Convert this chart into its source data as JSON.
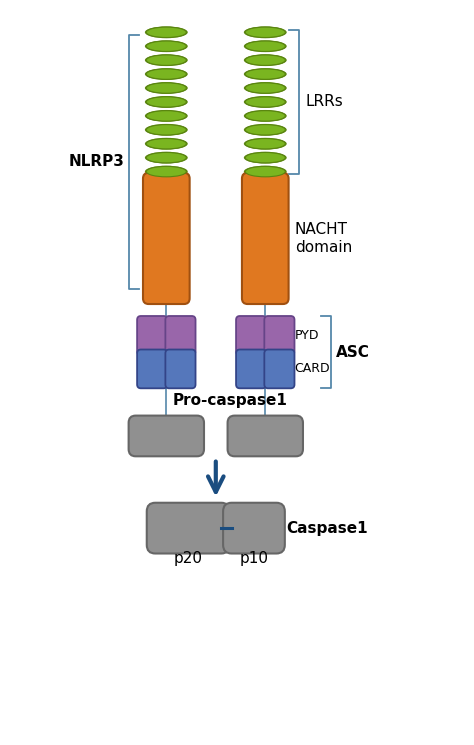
{
  "background_color": "#ffffff",
  "figsize": [
    4.74,
    7.45
  ],
  "dpi": 100,
  "colors": {
    "green_lrr": "#7ab520",
    "green_lrr_dark": "#5a8510",
    "orange_nacht": "#e07820",
    "orange_nacht_dark": "#a05010",
    "purple_pyd_nlrp3": "#9966bb",
    "purple_pyd_asc": "#9966bb",
    "blue_card": "#5577bb",
    "gray_box": "#909090",
    "gray_box_dark": "#666666",
    "line_color": "#5588aa",
    "arrow_color": "#1a4d80"
  },
  "labels": {
    "LRRs": "LRRs",
    "NLRP3": "NLRP3",
    "NACHT": "NACHT\ndomain",
    "PYD": "PYD",
    "CARD": "CARD",
    "ASC": "ASC",
    "ProCaspase1": "Pro-caspase1",
    "Caspase1": "Caspase1",
    "p20": "p20",
    "p10": "p10"
  },
  "font_sizes": {
    "label": 11,
    "bold_label": 11,
    "small_label": 9
  }
}
